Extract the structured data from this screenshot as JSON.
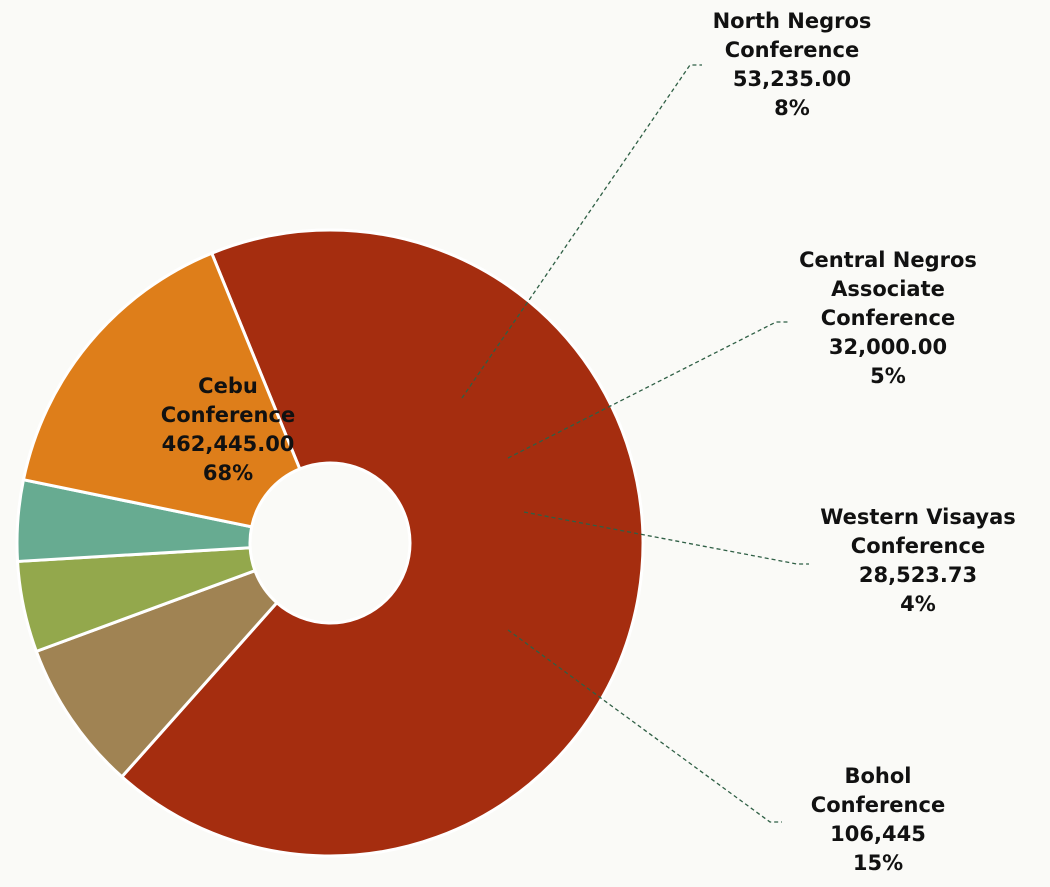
{
  "chart_data": {
    "type": "pie",
    "title": "",
    "slices": [
      {
        "label_lines": [
          "Cebu",
          "Conference"
        ],
        "value_text": "462,445.00",
        "pct_text": "68%",
        "value": 462445.0,
        "color": "#a52d0f",
        "label_color": "#ffff00"
      },
      {
        "label_lines": [
          "North Negros",
          "Conference"
        ],
        "value_text": "53,235.00",
        "pct_text": "8%",
        "value": 53235.0,
        "color": "#a08353",
        "label_color": "#111111"
      },
      {
        "label_lines": [
          "Central Negros",
          "Associate",
          "Conference"
        ],
        "value_text": "32,000.00",
        "pct_text": "5%",
        "value": 32000.0,
        "color": "#93a84c",
        "label_color": "#111111"
      },
      {
        "label_lines": [
          "Western Visayas",
          "Conference"
        ],
        "value_text": "28,523.73",
        "pct_text": "4%",
        "value": 28523.73,
        "color": "#67ab91",
        "label_color": "#111111"
      },
      {
        "label_lines": [
          "Bohol",
          "Conference"
        ],
        "value_text": "106,445",
        "pct_text": "15%",
        "value": 106445,
        "color": "#de7e1a",
        "label_color": "#111111"
      }
    ],
    "leader_color": "#2f5f45",
    "legend": "none"
  }
}
